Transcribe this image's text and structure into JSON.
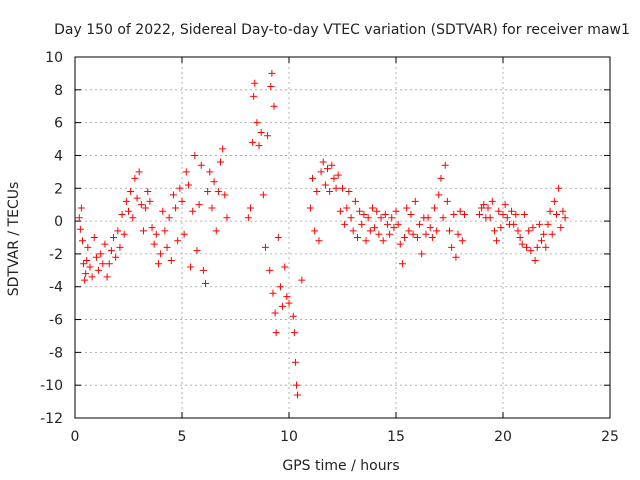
{
  "chart_data": {
    "type": "scatter",
    "title": "Day 150 of 2022, Sidereal Day-to-day VTEC variation (SDTVAR) for receiver maw1",
    "xlabel": "GPS time / hours",
    "ylabel": "SDTVAR / TECUs",
    "xlim": [
      0,
      25
    ],
    "ylim": [
      -12,
      10
    ],
    "xticks": [
      0,
      5,
      10,
      15,
      20,
      25
    ],
    "xtick_labels": [
      "0",
      "5",
      "10",
      "15",
      "20",
      "25"
    ],
    "yticks": [
      -12,
      -10,
      -8,
      -6,
      -4,
      -2,
      0,
      2,
      4,
      6,
      8,
      10
    ],
    "ytick_labels": [
      "-12",
      "-10",
      "-8",
      "-6",
      "-4",
      "-2",
      "0",
      "2",
      "4",
      "6",
      "8",
      "10"
    ],
    "grid": true,
    "marker": "+",
    "marker_color": "#ff0000",
    "series": [
      {
        "name": "SDTVAR",
        "points": [
          [
            0.2,
            0.2
          ],
          [
            0.25,
            -0.5
          ],
          [
            0.3,
            0.8
          ],
          [
            0.35,
            -1.2
          ],
          [
            0.4,
            -2.6
          ],
          [
            0.45,
            -3.6
          ],
          [
            0.5,
            -3.2
          ],
          [
            0.55,
            -2.4
          ],
          [
            0.6,
            -1.6
          ],
          [
            0.7,
            -2.8
          ],
          [
            0.8,
            -3.4
          ],
          [
            0.9,
            -1.0
          ],
          [
            1.0,
            -2.2
          ],
          [
            1.1,
            -3.0
          ],
          [
            1.2,
            -2.0
          ],
          [
            1.3,
            -2.6
          ],
          [
            1.4,
            -1.4
          ],
          [
            1.5,
            -3.4
          ],
          [
            1.6,
            -2.6
          ],
          [
            1.7,
            -1.8
          ],
          [
            1.8,
            -1.0
          ],
          [
            1.9,
            -2.2
          ],
          [
            2.0,
            -0.6
          ],
          [
            2.1,
            -1.6
          ],
          [
            2.2,
            0.4
          ],
          [
            2.3,
            -0.8
          ],
          [
            2.4,
            1.2
          ],
          [
            2.5,
            0.6
          ],
          [
            2.6,
            1.8
          ],
          [
            2.7,
            0.2
          ],
          [
            2.8,
            2.6
          ],
          [
            2.9,
            1.4
          ],
          [
            3.0,
            3.0
          ],
          [
            3.1,
            1.0
          ],
          [
            3.2,
            -0.6
          ],
          [
            3.3,
            0.8
          ],
          [
            3.4,
            1.8
          ],
          [
            3.5,
            1.2
          ],
          [
            3.6,
            -0.4
          ],
          [
            3.7,
            -1.4
          ],
          [
            3.8,
            -0.8
          ],
          [
            3.9,
            -2.6
          ],
          [
            4.0,
            -2.0
          ],
          [
            4.1,
            0.6
          ],
          [
            4.2,
            -0.6
          ],
          [
            4.3,
            -1.6
          ],
          [
            4.4,
            0.2
          ],
          [
            4.5,
            -2.4
          ],
          [
            4.6,
            1.6
          ],
          [
            4.7,
            0.8
          ],
          [
            4.8,
            -1.2
          ],
          [
            4.9,
            2.0
          ],
          [
            5.0,
            1.2
          ],
          [
            5.1,
            -0.8
          ],
          [
            5.2,
            3.0
          ],
          [
            5.3,
            2.2
          ],
          [
            5.4,
            -2.8
          ],
          [
            5.5,
            0.6
          ],
          [
            5.6,
            4.0
          ],
          [
            5.7,
            -1.8
          ],
          [
            5.8,
            1.0
          ],
          [
            5.9,
            3.4
          ],
          [
            6.0,
            -3.0
          ],
          [
            6.1,
            -3.8
          ],
          [
            6.2,
            1.8
          ],
          [
            6.3,
            3.0
          ],
          [
            6.4,
            0.8
          ],
          [
            6.5,
            2.4
          ],
          [
            6.6,
            -0.6
          ],
          [
            6.7,
            1.8
          ],
          [
            6.8,
            3.6
          ],
          [
            6.9,
            4.4
          ],
          [
            7.0,
            1.6
          ],
          [
            7.1,
            0.2
          ],
          [
            8.1,
            0.2
          ],
          [
            8.2,
            0.8
          ],
          [
            8.3,
            4.8
          ],
          [
            8.35,
            7.6
          ],
          [
            8.4,
            8.4
          ],
          [
            8.5,
            6.0
          ],
          [
            8.6,
            4.6
          ],
          [
            8.7,
            5.4
          ],
          [
            8.8,
            1.6
          ],
          [
            8.9,
            -1.6
          ],
          [
            9.0,
            5.2
          ],
          [
            9.1,
            -3.0
          ],
          [
            9.15,
            8.2
          ],
          [
            9.2,
            9.0
          ],
          [
            9.25,
            -4.4
          ],
          [
            9.3,
            7.0
          ],
          [
            9.35,
            -5.6
          ],
          [
            9.4,
            -6.8
          ],
          [
            9.5,
            -1.0
          ],
          [
            9.6,
            -4.0
          ],
          [
            9.7,
            -5.2
          ],
          [
            9.8,
            -2.8
          ],
          [
            9.9,
            -4.6
          ],
          [
            10.0,
            -5.0
          ],
          [
            10.2,
            -5.8
          ],
          [
            10.25,
            -6.8
          ],
          [
            10.3,
            -8.6
          ],
          [
            10.35,
            -10.0
          ],
          [
            10.4,
            -10.6
          ],
          [
            10.6,
            -3.6
          ],
          [
            11.0,
            0.8
          ],
          [
            11.1,
            2.6
          ],
          [
            11.2,
            -0.6
          ],
          [
            11.3,
            1.8
          ],
          [
            11.4,
            -1.2
          ],
          [
            11.5,
            3.0
          ],
          [
            11.6,
            3.6
          ],
          [
            11.7,
            2.2
          ],
          [
            11.8,
            3.2
          ],
          [
            11.9,
            1.8
          ],
          [
            12.0,
            3.4
          ],
          [
            12.1,
            2.6
          ],
          [
            12.2,
            2.0
          ],
          [
            12.3,
            2.8
          ],
          [
            12.4,
            0.6
          ],
          [
            12.5,
            2.0
          ],
          [
            12.6,
            -0.2
          ],
          [
            12.7,
            0.8
          ],
          [
            12.8,
            1.8
          ],
          [
            12.9,
            0.2
          ],
          [
            13.0,
            -0.6
          ],
          [
            13.1,
            1.2
          ],
          [
            13.2,
            -1.0
          ],
          [
            13.3,
            0.6
          ],
          [
            13.4,
            -0.2
          ],
          [
            13.5,
            0.4
          ],
          [
            13.6,
            -1.2
          ],
          [
            13.7,
            0.2
          ],
          [
            13.8,
            -0.6
          ],
          [
            13.9,
            0.8
          ],
          [
            14.0,
            -0.4
          ],
          [
            14.1,
            0.6
          ],
          [
            14.2,
            -0.8
          ],
          [
            14.3,
            0.2
          ],
          [
            14.4,
            -1.2
          ],
          [
            14.5,
            0.4
          ],
          [
            14.6,
            -0.2
          ],
          [
            14.7,
            -0.8
          ],
          [
            14.8,
            0.2
          ],
          [
            14.9,
            -0.4
          ],
          [
            15.0,
            0.6
          ],
          [
            15.1,
            -0.2
          ],
          [
            15.2,
            -1.4
          ],
          [
            15.3,
            -2.6
          ],
          [
            15.4,
            -1.0
          ],
          [
            15.5,
            0.8
          ],
          [
            15.6,
            -0.6
          ],
          [
            15.7,
            0.4
          ],
          [
            15.8,
            -0.8
          ],
          [
            15.9,
            1.2
          ],
          [
            16.0,
            -1.0
          ],
          [
            16.1,
            -0.2
          ],
          [
            16.2,
            -2.0
          ],
          [
            16.3,
            0.2
          ],
          [
            16.4,
            -0.8
          ],
          [
            16.5,
            0.2
          ],
          [
            16.6,
            -0.4
          ],
          [
            16.7,
            -1.0
          ],
          [
            16.8,
            0.8
          ],
          [
            16.9,
            -0.6
          ],
          [
            17.0,
            1.6
          ],
          [
            17.1,
            2.6
          ],
          [
            17.2,
            0.2
          ],
          [
            17.3,
            3.4
          ],
          [
            17.4,
            1.2
          ],
          [
            17.5,
            -0.6
          ],
          [
            17.6,
            -1.6
          ],
          [
            17.7,
            0.4
          ],
          [
            17.8,
            -2.2
          ],
          [
            17.9,
            -0.8
          ],
          [
            18.0,
            0.6
          ],
          [
            18.1,
            -1.2
          ],
          [
            18.2,
            0.4
          ],
          [
            18.9,
            0.4
          ],
          [
            19.0,
            0.8
          ],
          [
            19.1,
            1.0
          ],
          [
            19.2,
            0.2
          ],
          [
            19.3,
            0.8
          ],
          [
            19.4,
            0.2
          ],
          [
            19.5,
            1.2
          ],
          [
            19.6,
            -0.6
          ],
          [
            19.7,
            -1.2
          ],
          [
            19.8,
            0.6
          ],
          [
            19.9,
            -0.4
          ],
          [
            20.0,
            0.4
          ],
          [
            20.1,
            1.0
          ],
          [
            20.2,
            0.2
          ],
          [
            20.3,
            -0.2
          ],
          [
            20.4,
            0.6
          ],
          [
            20.5,
            -0.2
          ],
          [
            20.6,
            0.4
          ],
          [
            20.7,
            -0.6
          ],
          [
            20.8,
            -1.0
          ],
          [
            20.9,
            -1.4
          ],
          [
            21.0,
            0.4
          ],
          [
            21.1,
            -1.6
          ],
          [
            21.2,
            -0.6
          ],
          [
            21.3,
            -1.8
          ],
          [
            21.4,
            -0.4
          ],
          [
            21.5,
            -2.4
          ],
          [
            21.6,
            -1.6
          ],
          [
            21.7,
            -0.2
          ],
          [
            21.8,
            -1.2
          ],
          [
            21.9,
            -0.8
          ],
          [
            22.0,
            -1.6
          ],
          [
            22.1,
            -0.2
          ],
          [
            22.2,
            0.6
          ],
          [
            22.3,
            -0.8
          ],
          [
            22.4,
            1.2
          ],
          [
            22.5,
            0.4
          ],
          [
            22.6,
            2.0
          ],
          [
            22.7,
            -0.4
          ],
          [
            22.8,
            0.6
          ],
          [
            22.9,
            0.2
          ]
        ]
      }
    ]
  }
}
